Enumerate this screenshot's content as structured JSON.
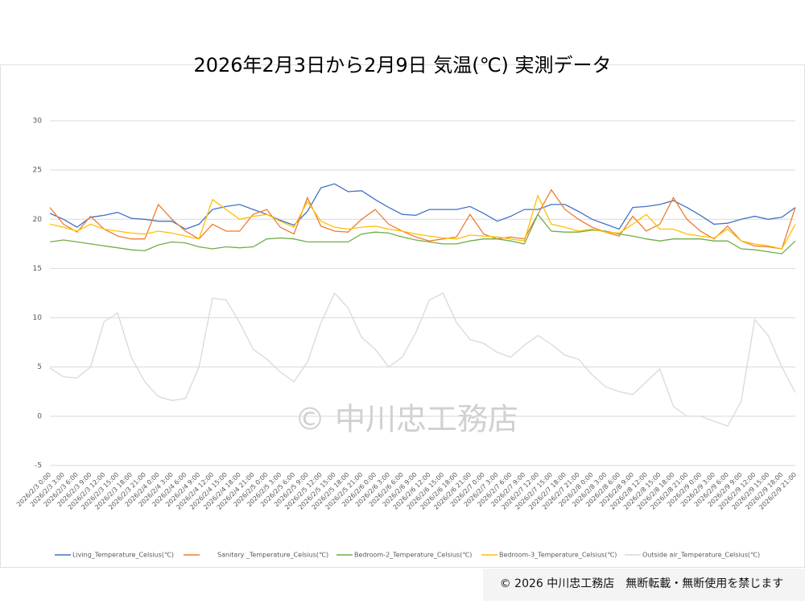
{
  "chart_data": {
    "type": "line",
    "title": "2026年2月3日から2月9日 気温(℃) 実測データ",
    "categories": [
      "2026/2/3 0:00",
      "2026/2/3 3:00",
      "2026/2/3 6:00",
      "2026/2/3 9:00",
      "2026/2/3 12:00",
      "2026/2/3 15:00",
      "2026/2/3 18:00",
      "2026/2/3 21:00",
      "2026/2/4 0:00",
      "2026/2/4 3:00",
      "2026/2/4 6:00",
      "2026/2/4 9:00",
      "2026/2/4 12:00",
      "2026/2/4 15:00",
      "2026/2/4 18:00",
      "2026/2/4 21:00",
      "2026/2/5 0:00",
      "2026/2/5 3:00",
      "2026/2/5 6:00",
      "2026/2/5 9:00",
      "2026/2/5 12:00",
      "2026/2/5 15:00",
      "2026/2/5 18:00",
      "2026/2/5 21:00",
      "2026/2/6 0:00",
      "2026/2/6 3:00",
      "2026/2/6 6:00",
      "2026/2/6 9:00",
      "2026/2/6 12:00",
      "2026/2/6 15:00",
      "2026/2/6 18:00",
      "2026/2/6 21:00",
      "2026/2/7 0:00",
      "2026/2/7 3:00",
      "2026/2/7 6:00",
      "2026/2/7 9:00",
      "2026/2/7 12:00",
      "2026/2/7 15:00",
      "2026/2/7 18:00",
      "2026/2/7 21:00",
      "2026/2/8 0:00",
      "2026/2/8 3:00",
      "2026/2/8 6:00",
      "2026/2/8 9:00",
      "2026/2/8 12:00",
      "2026/2/8 15:00",
      "2026/2/8 18:00",
      "2026/2/8 21:00",
      "2026/2/9 0:00",
      "2026/2/9 3:00",
      "2026/2/9 6:00",
      "2026/2/9 9:00",
      "2026/2/9 12:00",
      "2026/2/9 15:00",
      "2026/2/9 18:00",
      "2026/2/9 21:00"
    ],
    "series": [
      {
        "name": "Living_Temperature_Celsius(℃)",
        "color": "#4472c4",
        "values": [
          20.6,
          20.0,
          19.2,
          20.2,
          20.4,
          20.7,
          20.1,
          20.0,
          19.8,
          19.8,
          19.0,
          19.5,
          21.0,
          21.3,
          21.5,
          21.0,
          20.5,
          19.9,
          19.4,
          20.8,
          23.2,
          23.6,
          22.8,
          22.9,
          22.0,
          21.2,
          20.5,
          20.4,
          21.0,
          21.0,
          21.0,
          21.3,
          20.6,
          19.8,
          20.3,
          21.0,
          21.0,
          21.5,
          21.5,
          20.8,
          20.0,
          19.5,
          19.0,
          21.2,
          21.3,
          21.5,
          21.9,
          21.2,
          20.4,
          19.5,
          19.6,
          20.0,
          20.3,
          20.0,
          20.2,
          21.2
        ]
      },
      {
        "name": "Sanitary _Temperature_Celsius(℃)",
        "color": "#ed7d31",
        "values": [
          21.2,
          19.5,
          18.7,
          20.3,
          19.0,
          18.3,
          18.0,
          18.0,
          21.5,
          20.0,
          18.8,
          18.0,
          19.5,
          18.8,
          18.8,
          20.5,
          21.0,
          19.2,
          18.5,
          22.2,
          19.3,
          18.8,
          18.7,
          20.0,
          21.0,
          19.5,
          18.8,
          18.2,
          17.8,
          18.0,
          18.2,
          20.5,
          18.5,
          18.0,
          18.2,
          18.0,
          20.5,
          23.0,
          21.0,
          20.0,
          19.2,
          18.7,
          18.3,
          20.3,
          18.8,
          19.5,
          22.2,
          20.0,
          18.8,
          18.0,
          19.3,
          17.8,
          17.3,
          17.2,
          17.0,
          21.2
        ]
      },
      {
        "name": "Bedroom-2_Temperature_Celsius(℃)",
        "color": "#70ad47",
        "values": [
          17.7,
          17.9,
          17.7,
          17.5,
          17.3,
          17.1,
          16.9,
          16.8,
          17.4,
          17.7,
          17.6,
          17.2,
          17.0,
          17.2,
          17.1,
          17.2,
          18.0,
          18.1,
          18.0,
          17.7,
          17.7,
          17.7,
          17.7,
          18.5,
          18.7,
          18.6,
          18.2,
          17.9,
          17.7,
          17.5,
          17.5,
          17.8,
          18.0,
          18.0,
          17.8,
          17.5,
          20.5,
          18.8,
          18.7,
          18.7,
          18.9,
          18.8,
          18.5,
          18.3,
          18.0,
          17.8,
          18.0,
          18.0,
          18.0,
          17.8,
          17.8,
          17.0,
          16.9,
          16.7,
          16.5,
          17.8
        ]
      },
      {
        "name": "Bedroom-3_Temperature_Celsius(℃)",
        "color": "#ffc000",
        "values": [
          19.5,
          19.2,
          18.8,
          19.5,
          19.0,
          18.8,
          18.6,
          18.5,
          18.8,
          18.6,
          18.3,
          18.0,
          22.0,
          21.0,
          20.0,
          20.3,
          20.5,
          19.8,
          19.2,
          21.8,
          19.8,
          19.2,
          19.0,
          19.2,
          19.3,
          19.0,
          18.8,
          18.5,
          18.3,
          18.1,
          18.0,
          18.4,
          18.3,
          18.2,
          18.0,
          17.8,
          22.4,
          19.5,
          19.2,
          18.8,
          19.0,
          18.7,
          18.6,
          19.5,
          20.5,
          19.0,
          19.0,
          18.5,
          18.3,
          18.1,
          19.0,
          17.8,
          17.5,
          17.3,
          17.0,
          19.5
        ]
      },
      {
        "name": "Outside air_Temperature_Celsius(℃)",
        "color": "#d9d9d9",
        "values": [
          4.9,
          4.0,
          3.9,
          5.0,
          9.6,
          10.5,
          6.0,
          3.5,
          2.0,
          1.6,
          1.8,
          5.0,
          12.0,
          11.8,
          9.5,
          6.8,
          5.8,
          4.5,
          3.5,
          5.5,
          9.5,
          12.5,
          11.0,
          8.0,
          6.8,
          5.0,
          6.0,
          8.5,
          11.8,
          12.5,
          9.5,
          7.8,
          7.4,
          6.5,
          6.0,
          7.2,
          8.2,
          7.3,
          6.2,
          5.8,
          4.2,
          3.0,
          2.5,
          2.2,
          3.5,
          4.8,
          1.0,
          0.0,
          0.0,
          -0.5,
          -1.0,
          1.5,
          9.8,
          8.2,
          5.0,
          2.4
        ]
      }
    ],
    "ylim": [
      -5,
      30
    ],
    "yticks": [
      -5,
      0,
      5,
      10,
      15,
      20,
      25,
      30
    ],
    "grid": true,
    "legend": "bottom"
  },
  "page": {
    "watermark": "© 中川忠工務店",
    "footer": "© 2026 中川忠工務店　無断転載・無断使用を禁じます"
  }
}
